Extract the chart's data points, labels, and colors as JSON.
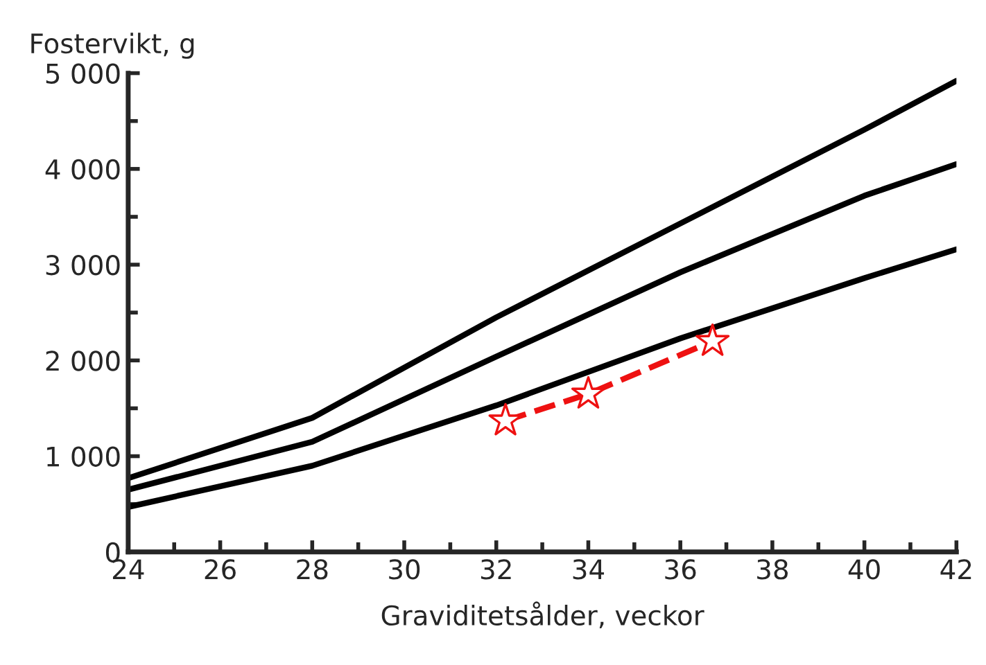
{
  "chart_data": {
    "type": "line",
    "ylabel": "Fostervikt, g",
    "xlabel": "Graviditetsålder, veckor",
    "xlim": [
      24,
      42
    ],
    "xticks": [
      24,
      26,
      28,
      30,
      32,
      34,
      36,
      38,
      40,
      42
    ],
    "ylim": [
      0,
      5000
    ],
    "yticks": [
      0,
      {
        "value": 1000,
        "label": "1 000"
      },
      {
        "value": 2000,
        "label": "2 000"
      },
      {
        "value": 3000,
        "label": "3 000"
      },
      {
        "value": 4000,
        "label": "4 000"
      },
      {
        "value": 5000,
        "label": "5 000"
      }
    ],
    "grid": false,
    "legend": false,
    "series": [
      {
        "color": "#000000",
        "x": [
          24,
          28,
          32,
          36,
          40,
          42
        ],
        "values": [
          770,
          1400,
          2450,
          3430,
          4410,
          4920
        ]
      },
      {
        "color": "#000000",
        "x": [
          24,
          28,
          32,
          36,
          40,
          42
        ],
        "values": [
          650,
          1150,
          2040,
          2920,
          3720,
          4050
        ]
      },
      {
        "color": "#000000",
        "x": [
          24,
          28,
          32,
          36,
          40,
          42
        ],
        "values": [
          470,
          900,
          1530,
          2230,
          2860,
          3160
        ]
      },
      {
        "color": "#ee1111",
        "x": [
          32.2,
          34.0,
          36.7
        ],
        "values": [
          1370,
          1650,
          2200
        ],
        "line_style": "dashed",
        "marker": "star"
      }
    ]
  }
}
